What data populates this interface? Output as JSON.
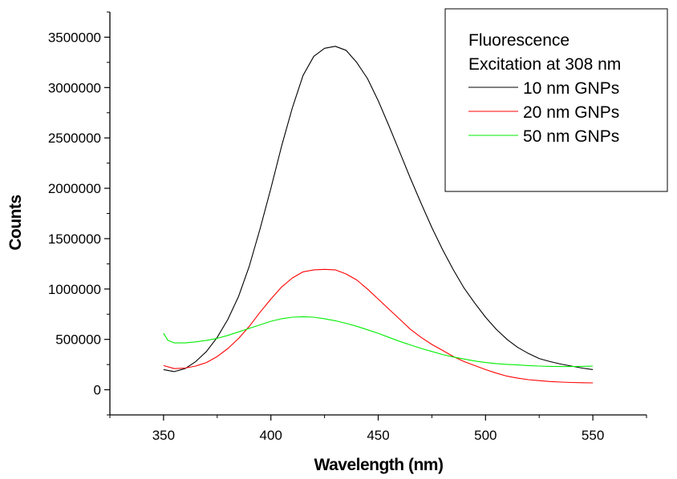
{
  "chart_data": {
    "type": "line",
    "title": "",
    "xlabel": "Wavelength (nm)",
    "ylabel": "Counts",
    "xlim": [
      325,
      575
    ],
    "ylim": [
      -250000,
      3750000
    ],
    "x_ticks": [
      350,
      400,
      450,
      500,
      550
    ],
    "y_ticks": [
      0,
      500000,
      1000000,
      1500000,
      2000000,
      2500000,
      3000000,
      3500000
    ],
    "x_tick_labels": [
      "350",
      "400",
      "450",
      "500",
      "550"
    ],
    "y_tick_labels": [
      "0",
      "500000",
      "1000000",
      "1500000",
      "2000000",
      "2500000",
      "3000000",
      "3500000"
    ],
    "grid": false,
    "legend": {
      "placement": "top-right",
      "title_lines": [
        "Fluorescence",
        "Excitation at 308 nm"
      ]
    },
    "series": [
      {
        "name": "10 nm GNPs",
        "color": "#000000",
        "x": [
          350,
          355,
          360,
          365,
          370,
          375,
          380,
          385,
          390,
          395,
          400,
          405,
          410,
          415,
          420,
          425,
          430,
          435,
          440,
          445,
          450,
          455,
          460,
          465,
          470,
          475,
          480,
          485,
          490,
          495,
          500,
          505,
          510,
          515,
          520,
          525,
          530,
          535,
          540,
          545,
          550
        ],
        "y": [
          200000,
          180000,
          210000,
          280000,
          380000,
          520000,
          700000,
          930000,
          1230000,
          1600000,
          2000000,
          2420000,
          2800000,
          3120000,
          3310000,
          3390000,
          3410000,
          3370000,
          3250000,
          3090000,
          2870000,
          2620000,
          2360000,
          2100000,
          1850000,
          1610000,
          1390000,
          1190000,
          1010000,
          860000,
          720000,
          600000,
          500000,
          420000,
          360000,
          310000,
          280000,
          255000,
          235000,
          215000,
          200000
        ]
      },
      {
        "name": "20 nm GNPs",
        "color": "#ff0000",
        "x": [
          350,
          355,
          360,
          365,
          370,
          375,
          380,
          385,
          390,
          395,
          400,
          405,
          410,
          415,
          420,
          425,
          430,
          435,
          440,
          445,
          450,
          455,
          460,
          465,
          470,
          475,
          480,
          485,
          490,
          495,
          500,
          505,
          510,
          515,
          520,
          525,
          530,
          535,
          540,
          545,
          550
        ],
        "y": [
          240000,
          210000,
          215000,
          235000,
          270000,
          330000,
          410000,
          510000,
          630000,
          770000,
          900000,
          1020000,
          1110000,
          1170000,
          1190000,
          1195000,
          1190000,
          1150000,
          1090000,
          1000000,
          900000,
          800000,
          700000,
          600000,
          520000,
          450000,
          390000,
          330000,
          280000,
          240000,
          200000,
          165000,
          135000,
          115000,
          100000,
          90000,
          82000,
          76000,
          72000,
          70000,
          68000
        ]
      },
      {
        "name": "50 nm GNPs",
        "color": "#00ee00",
        "x": [
          350,
          352,
          355,
          360,
          365,
          370,
          375,
          380,
          385,
          390,
          395,
          400,
          405,
          410,
          415,
          420,
          425,
          430,
          435,
          440,
          445,
          450,
          455,
          460,
          465,
          470,
          475,
          480,
          485,
          490,
          495,
          500,
          505,
          510,
          515,
          520,
          525,
          530,
          535,
          540,
          545,
          550
        ],
        "y": [
          560000,
          490000,
          465000,
          465000,
          475000,
          490000,
          510000,
          540000,
          575000,
          610000,
          645000,
          680000,
          705000,
          720000,
          725000,
          720000,
          705000,
          685000,
          660000,
          630000,
          595000,
          560000,
          520000,
          480000,
          445000,
          410000,
          380000,
          350000,
          325000,
          305000,
          285000,
          270000,
          260000,
          252000,
          246000,
          240000,
          235000,
          232000,
          230000,
          230000,
          232000,
          235000
        ]
      }
    ]
  }
}
